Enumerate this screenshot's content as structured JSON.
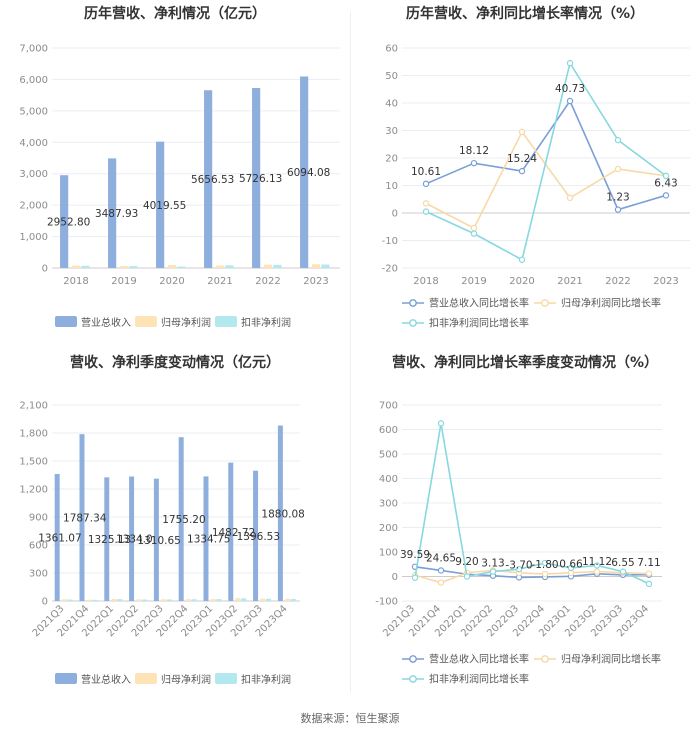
{
  "source_label": "数据来源：恒生聚源",
  "colors": {
    "revenue": "#8eaedd",
    "net_profit": "#fde3b6",
    "deducted_profit": "#b3e8ee",
    "line_revenue": "#7a9fd6",
    "line_net": "#f8d9a6",
    "line_deducted": "#87d8df",
    "grid": "#e9eef5",
    "axis": "#cccccc"
  },
  "chart_data": [
    {
      "id": "annual_values",
      "type": "bar",
      "title": "历年营收、净利情况（亿元）",
      "categories": [
        "2018",
        "2019",
        "2020",
        "2021",
        "2022",
        "2023"
      ],
      "ylim": [
        0,
        7000
      ],
      "yticks": [
        0,
        1000,
        2000,
        3000,
        4000,
        5000,
        6000,
        7000
      ],
      "ytick_labels": [
        "0",
        "1,000",
        "2,000",
        "3,000",
        "4,000",
        "5,000",
        "6,000",
        "7,000"
      ],
      "series": [
        {
          "name": "营业总收入",
          "values": [
            2952.8,
            3487.93,
            4019.55,
            5656.53,
            5726.13,
            6094.08
          ],
          "labels": [
            "2952.80",
            "3487.93",
            "4019.55",
            "5656.53",
            "5726.13",
            "6094.08"
          ]
        },
        {
          "name": "归母净利润",
          "values": [
            75,
            62,
            95,
            80,
            105,
            120
          ]
        },
        {
          "name": "扣非净利润",
          "values": [
            70,
            60,
            45,
            85,
            100,
            110
          ]
        }
      ]
    },
    {
      "id": "annual_growth",
      "type": "line",
      "title": "历年营收、净利同比增长率情况（%）",
      "categories": [
        "2018",
        "2019",
        "2020",
        "2021",
        "2022",
        "2023"
      ],
      "ylim": [
        -20,
        60
      ],
      "yticks": [
        -20,
        -10,
        0,
        10,
        20,
        30,
        40,
        50,
        60
      ],
      "ytick_labels": [
        "-20",
        "-10",
        "0",
        "10",
        "20",
        "30",
        "40",
        "50",
        "60"
      ],
      "series": [
        {
          "name": "营业总收入同比增长率",
          "values": [
            10.61,
            18.12,
            15.24,
            40.73,
            1.23,
            6.43
          ],
          "labels": [
            "10.61",
            "18.12",
            "15.24",
            "40.73",
            "1.23",
            "6.43"
          ]
        },
        {
          "name": "归母净利润同比增长率",
          "values": [
            3.5,
            -5.5,
            29.5,
            5.5,
            16,
            13.5
          ]
        },
        {
          "name": "扣非净利润同比增长率",
          "values": [
            0.5,
            -7.5,
            -17,
            54.5,
            26.5,
            13.5
          ]
        }
      ]
    },
    {
      "id": "quarterly_values",
      "type": "bar",
      "title": "营收、净利季度变动情况（亿元）",
      "categories": [
        "2021Q3",
        "2021Q4",
        "2022Q1",
        "2022Q2",
        "2022Q3",
        "2022Q4",
        "2023Q1",
        "2023Q2",
        "2023Q3",
        "2023Q4"
      ],
      "ylim": [
        0,
        2100
      ],
      "yticks": [
        0,
        300,
        600,
        900,
        1200,
        1500,
        1800,
        2100
      ],
      "ytick_labels": [
        "0",
        "300",
        "600",
        "900",
        "1,200",
        "1,500",
        "1,800",
        "2,100"
      ],
      "series": [
        {
          "name": "营业总收入",
          "values": [
            1361.07,
            1787.34,
            1325.13,
            1334.0,
            1310.65,
            1755.2,
            1334.75,
            1482.72,
            1396.53,
            1880.08
          ],
          "labels": [
            "1361.07",
            "1787.34",
            "1325.13",
            "1334.0",
            "1310.65",
            "1755.20",
            "1334.75",
            "1482.72",
            "1396.53",
            "1880.08"
          ]
        },
        {
          "name": "归母净利润",
          "values": [
            18,
            14,
            22,
            18,
            18,
            20,
            22,
            30,
            26,
            24
          ]
        },
        {
          "name": "扣非净利润",
          "values": [
            16,
            12,
            20,
            16,
            17,
            19,
            20,
            28,
            24,
            22
          ]
        }
      ]
    },
    {
      "id": "quarterly_growth",
      "type": "line",
      "title": "营收、净利同比增长率季度变动情况（%）",
      "categories": [
        "2021Q3",
        "2021Q4",
        "2022Q1",
        "2022Q2",
        "2022Q3",
        "2022Q4",
        "2023Q1",
        "2023Q2",
        "2023Q3",
        "2023Q4"
      ],
      "ylim": [
        -100,
        700
      ],
      "yticks": [
        -100,
        0,
        100,
        200,
        300,
        400,
        500,
        600,
        700
      ],
      "ytick_labels": [
        "-100",
        "0",
        "100",
        "200",
        "300",
        "400",
        "500",
        "600",
        "700"
      ],
      "series": [
        {
          "name": "营业总收入同比增长率",
          "values": [
            39.59,
            24.65,
            9.2,
            3.13,
            -3.7,
            -1.8,
            0.66,
            11.12,
            6.55,
            7.11
          ],
          "labels": [
            "39.59",
            "24.65",
            "9.20",
            "3.13",
            "-3.70",
            "-1.80",
            "0.66",
            "11.12",
            "6.55",
            "7.11"
          ]
        },
        {
          "name": "归母净利润同比增长率",
          "values": [
            5,
            -25,
            15,
            25,
            15,
            10,
            15,
            20,
            15,
            12
          ]
        },
        {
          "name": "扣非净利润同比增长率",
          "values": [
            -5,
            625,
            0,
            20,
            30,
            55,
            35,
            45,
            20,
            -30
          ]
        }
      ]
    }
  ]
}
